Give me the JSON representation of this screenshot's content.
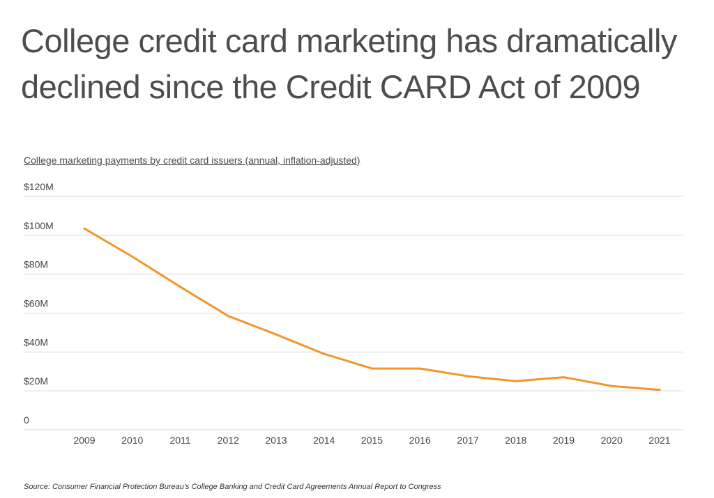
{
  "title_lines": [
    "College credit card marketing has dramatically",
    "declined since the Credit CARD Act of 2009"
  ],
  "source": "Source: Consumer Financial Protection Bureau's College Banking and Credit Card Agreements Annual Report to Congress",
  "colors": {
    "line": "#f0962a",
    "grid": "#d9d9d9",
    "text": "#4a4a4a"
  },
  "chart_data": {
    "type": "line",
    "title": "College marketing payments by credit card issuers (annual, inflation-adjusted)",
    "xlabel": "",
    "ylabel": "",
    "x": [
      2009,
      2010,
      2011,
      2012,
      2013,
      2014,
      2015,
      2016,
      2017,
      2018,
      2019,
      2020,
      2021
    ],
    "series": [
      {
        "values": [
          103.5,
          89,
          73.5,
          58.5,
          49,
          39,
          31.5,
          31.5,
          27.5,
          25,
          27,
          22.5,
          20.5
        ]
      }
    ],
    "ylim": [
      0,
      120
    ],
    "yticks": [
      0,
      20,
      40,
      60,
      80,
      100,
      120
    ],
    "ytick_labels": [
      "0",
      "$20M",
      "$40M",
      "$60M",
      "$80M",
      "$100M",
      "$120M"
    ],
    "grid": true,
    "legend": "none"
  }
}
